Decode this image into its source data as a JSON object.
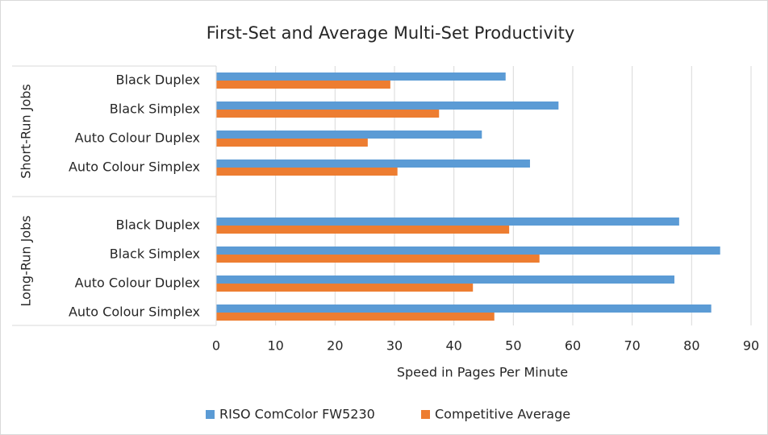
{
  "chart_data": {
    "type": "bar",
    "orientation": "horizontal",
    "title": "First-Set and Average Multi-Set Productivity",
    "x_label": "Speed in Pages Per Minute",
    "groups": [
      "Short-Run Jobs",
      "Short-Run Jobs",
      "Short-Run Jobs",
      "Short-Run Jobs",
      "Long-Run Jobs",
      "Long-Run Jobs",
      "Long-Run Jobs",
      "Long-Run Jobs"
    ],
    "categories": [
      "Black Duplex",
      "Black Simplex",
      "Auto Colour Duplex",
      "Auto Colour Simplex",
      "Black Duplex",
      "Black Simplex",
      "Auto Colour Duplex",
      "Auto Colour Simplex"
    ],
    "series": [
      {
        "name": "RISO ComColor FW5230",
        "color": "#5b9bd5",
        "values": [
          48.7,
          57.6,
          44.7,
          52.8,
          77.9,
          84.8,
          77.1,
          83.3
        ]
      },
      {
        "name": "Competitive Average",
        "color": "#ed7d31",
        "values": [
          29.3,
          37.5,
          25.5,
          30.5,
          49.3,
          54.4,
          43.2,
          46.8
        ]
      }
    ],
    "xlim": [
      0,
      90
    ],
    "xticks": [
      0,
      10,
      20,
      30,
      40,
      50,
      60,
      70,
      80,
      90
    ],
    "grid": true,
    "legend": "bottom"
  }
}
